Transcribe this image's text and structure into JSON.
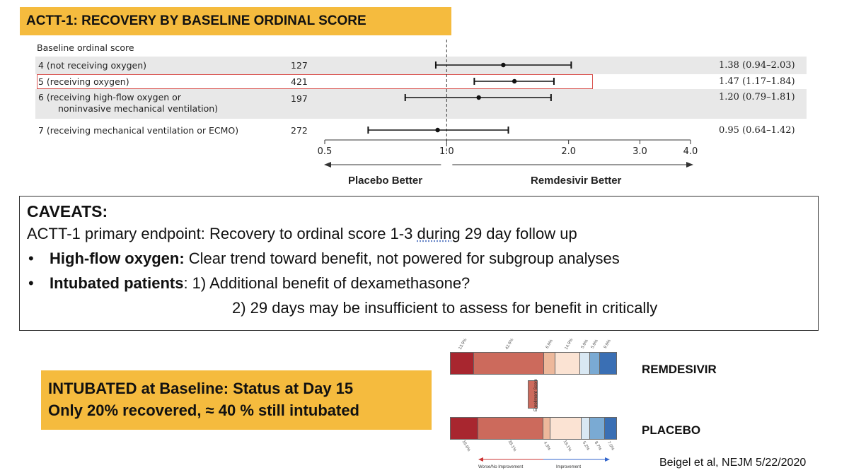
{
  "title": "ACTT-1:  RECOVERY BY BASELINE ORDINAL SCORE",
  "forest_plot": {
    "header": "Baseline ordinal score",
    "rows": [
      {
        "label": "4 (not receiving oxygen)",
        "label2": "",
        "n": "127",
        "ci": "1.38 (0.94–2.03)",
        "est": 1.38,
        "lo": 0.94,
        "hi": 2.03,
        "shaded": true,
        "highlighted": false
      },
      {
        "label": "5 (receiving oxygen)",
        "label2": "",
        "n": "421",
        "ci": "1.47 (1.17–1.84)",
        "est": 1.47,
        "lo": 1.17,
        "hi": 1.84,
        "shaded": false,
        "highlighted": true
      },
      {
        "label": "6 (receiving high-flow oxygen or",
        "label2": "noninvasive mechanical ventilation)",
        "n": "197",
        "ci": "1.20 (0.79–1.81)",
        "est": 1.2,
        "lo": 0.79,
        "hi": 1.81,
        "shaded": true,
        "highlighted": false
      },
      {
        "label": "7 (receiving mechanical ventilation or ECMO)",
        "label2": "",
        "n": "272",
        "ci": "0.95 (0.64–1.42)",
        "est": 0.95,
        "lo": 0.64,
        "hi": 1.42,
        "shaded": false,
        "highlighted": false
      }
    ],
    "axis_ticks": [
      "0.5",
      "1.0",
      "2.0",
      "3.0",
      "4.0"
    ],
    "left_label": "Placebo Better",
    "right_label": "Remdesivir Better"
  },
  "caveats": {
    "heading": "CAVEATS:",
    "line1_pre": "ACTT-1 primary endpoint: Recovery to ordinal score 1-3 ",
    "line1_ul": "during",
    "line1_post": " 29 day follow up",
    "b1_bold": "High-flow oxygen:",
    "b1_text": " Clear trend toward benefit, not powered for subgroup analyses",
    "b2_bold": "Intubated patients",
    "b2_text": ": 1) Additional benefit of dexamethasone?",
    "b2_line2": "2) 29 days may be insufficient to assess for benefit in critically"
  },
  "intubated_box": {
    "line1": "INTUBATED at Baseline: Status at Day 15",
    "line2": "Only 20% recovered, ≈ 40 % still intubated"
  },
  "stacked_bars": {
    "remdesivir_label": "REMDESIVIR",
    "placebo_label": "PLACEBO",
    "axis_box_label": "Enrollment Score",
    "left_arrow_label": "Worse/No Improvement",
    "right_arrow_label": "Improvement",
    "remdesivir": {
      "segments": [
        {
          "value": 13.9,
          "color": "#a8262f"
        },
        {
          "value": 42.6,
          "color": "#cc6a5c"
        },
        {
          "value": 6.9,
          "color": "#edb89b"
        },
        {
          "value": 14.9,
          "color": "#fbe3d3"
        },
        {
          "value": 5.9,
          "color": "#d9e8f3"
        },
        {
          "value": 5.9,
          "color": "#7aaad3"
        },
        {
          "value": 9.9,
          "color": "#3a6fb4"
        }
      ],
      "labels": [
        "13.9%",
        "42.6%",
        "6.9%",
        "14.9%",
        "5.9%",
        "5.9%",
        "9.9%"
      ]
    },
    "placebo": {
      "segments": [
        {
          "value": 16.9,
          "color": "#a8262f"
        },
        {
          "value": 39.1,
          "color": "#cc6a5c"
        },
        {
          "value": 4.3,
          "color": "#edb89b"
        },
        {
          "value": 19.1,
          "color": "#fbe3d3"
        },
        {
          "value": 5.2,
          "color": "#d9e8f3"
        },
        {
          "value": 8.7,
          "color": "#7aaad3"
        },
        {
          "value": 7.0,
          "color": "#3a6fb4"
        }
      ],
      "labels": [
        "16.9%",
        "39.1%",
        "4.3%",
        "19.1%",
        "5.2%",
        "8.7%",
        "7.0%"
      ]
    }
  },
  "citation": "Beigel et al, NEJM 5/22/2020"
}
